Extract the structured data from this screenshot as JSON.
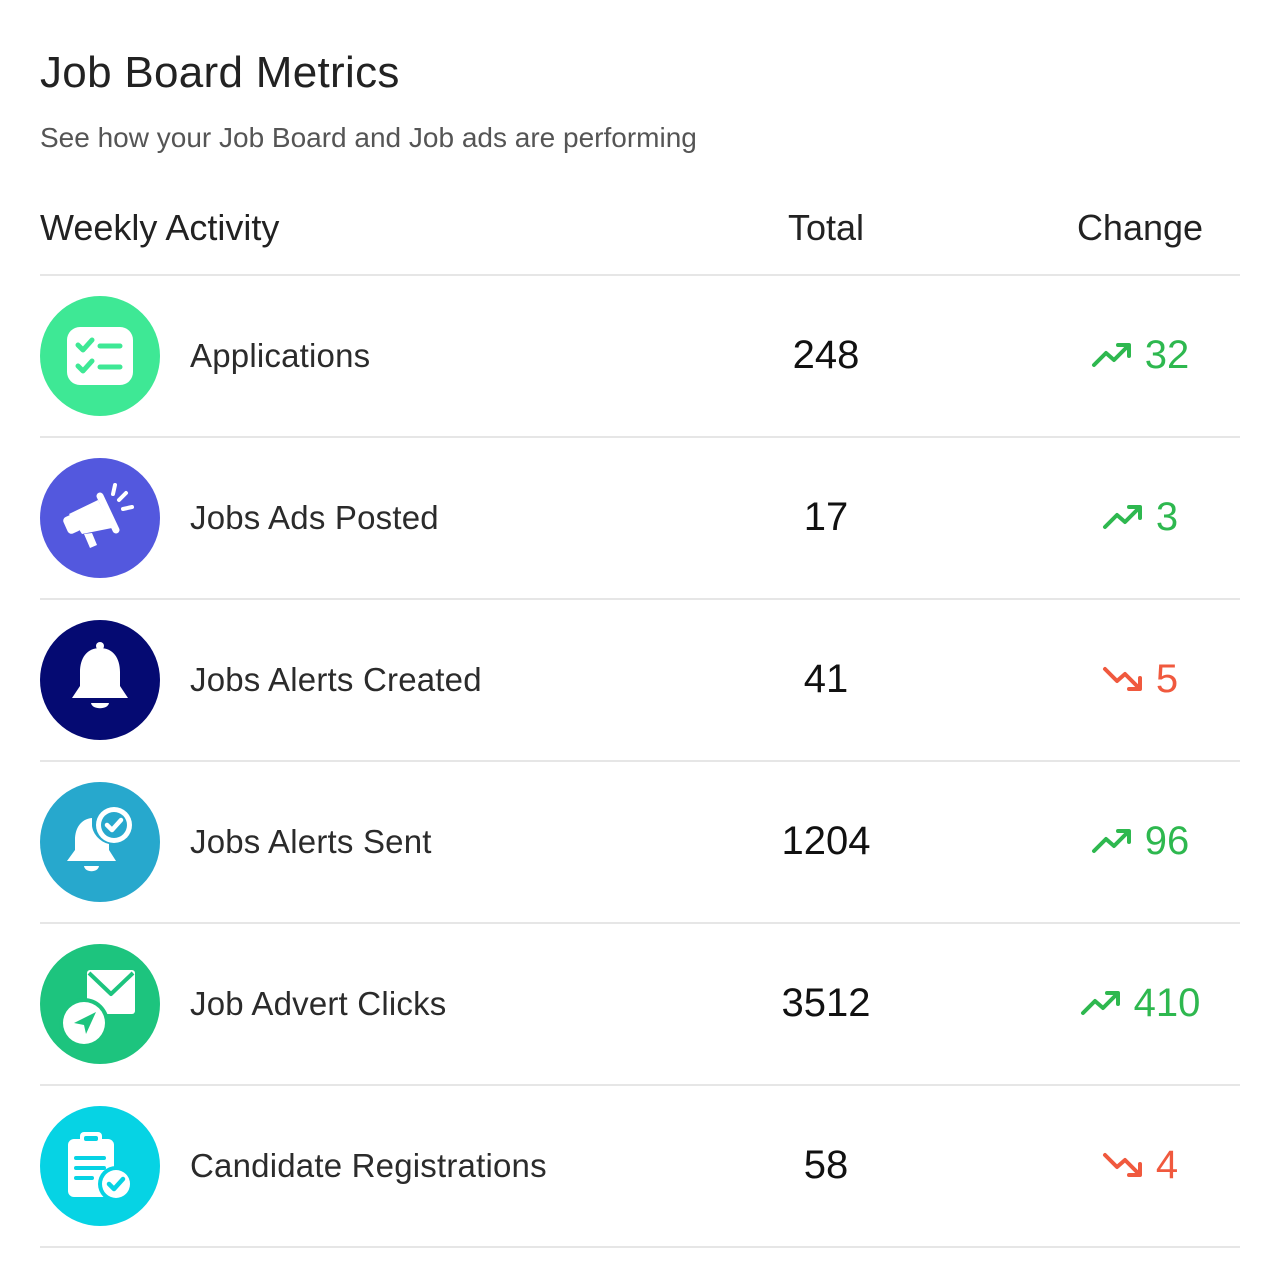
{
  "header": {
    "title": "Job Board Metrics",
    "subtitle": "See how your Job Board and Job ads are performing"
  },
  "table": {
    "columns": {
      "activity": "Weekly Activity",
      "total": "Total",
      "change": "Change"
    },
    "rows": [
      {
        "label": "Applications",
        "total": "248",
        "change": "32",
        "direction": "up",
        "icon": "checklist-icon",
        "icon_bg": "#3ee895"
      },
      {
        "label": "Jobs Ads Posted",
        "total": "17",
        "change": "3",
        "direction": "up",
        "icon": "megaphone-icon",
        "icon_bg": "#5358de"
      },
      {
        "label": "Jobs Alerts Created",
        "total": "41",
        "change": "5",
        "direction": "down",
        "icon": "bell-icon",
        "icon_bg": "#050a72"
      },
      {
        "label": "Jobs Alerts Sent",
        "total": "1204",
        "change": "96",
        "direction": "up",
        "icon": "bell-check-icon",
        "icon_bg": "#27a8cd"
      },
      {
        "label": "Job Advert Clicks",
        "total": "3512",
        "change": "410",
        "direction": "up",
        "icon": "mail-send-icon",
        "icon_bg": "#1dc47e"
      },
      {
        "label": "Candidate Registrations",
        "total": "58",
        "change": "4",
        "direction": "down",
        "icon": "clipboard-check-icon",
        "icon_bg": "#06d3e4"
      }
    ]
  },
  "colors": {
    "up": "#2eb84f",
    "down": "#f0593e"
  }
}
